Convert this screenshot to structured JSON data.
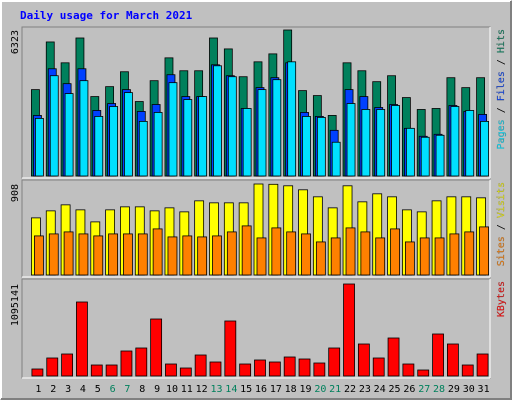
{
  "title": "Daily usage for March 2021",
  "chart_data": [
    {
      "type": "bar",
      "ylim": [
        0,
        6323
      ],
      "yticks": [
        6323
      ],
      "legend_separator": " / ",
      "series": [
        {
          "name": "Hits",
          "color": "#00805c",
          "values": [
            3741,
            5805,
            4902,
            5977,
            3440,
            3870,
            4515,
            3225,
            4128,
            5117,
            4558,
            4558,
            5977,
            5504,
            4300,
            4945,
            5289,
            6323,
            3698,
            3483,
            2623,
            4902,
            4558,
            4085,
            4343,
            3397,
            2881,
            2924,
            4257,
            3827,
            4257
          ]
        },
        {
          "name": "Files",
          "color": "#0040ff",
          "values": [
            2623,
            4644,
            3999,
            4644,
            2838,
            3139,
            3741,
            2795,
            3096,
            4386,
            3440,
            3440,
            4816,
            4343,
            2924,
            3827,
            4257,
            4902,
            2752,
            2580,
            1978,
            3741,
            3440,
            2967,
            3096,
            2064,
            1720,
            1806,
            3053,
            2795,
            2666
          ]
        },
        {
          "name": "Pages",
          "color": "#00e0ff",
          "values": [
            2494,
            4343,
            3569,
            4128,
            2580,
            3010,
            3612,
            2365,
            2752,
            4042,
            3311,
            3440,
            4773,
            4300,
            2924,
            3741,
            4171,
            4945,
            2580,
            2537,
            1462,
            3139,
            2881,
            2881,
            3053,
            2064,
            1677,
            1763,
            3010,
            2838,
            2365
          ]
        }
      ]
    },
    {
      "type": "bar",
      "ylim": [
        0,
        908
      ],
      "yticks": [
        908
      ],
      "legend_separator": " / ",
      "series": [
        {
          "name": "Visits",
          "color": "#ffff00",
          "values": [
            570,
            640,
            700,
            650,
            530,
            650,
            680,
            680,
            640,
            670,
            630,
            740,
            720,
            720,
            720,
            908,
            905,
            890,
            850,
            780,
            670,
            890,
            730,
            810,
            780,
            650,
            630,
            740,
            780,
            780,
            770
          ]
        },
        {
          "name": "Sites",
          "color": "#ff8000",
          "values": [
            390,
            410,
            430,
            410,
            390,
            410,
            410,
            410,
            460,
            380,
            390,
            380,
            390,
            430,
            490,
            370,
            470,
            430,
            410,
            330,
            370,
            470,
            430,
            370,
            460,
            330,
            370,
            370,
            410,
            430,
            480
          ]
        }
      ]
    },
    {
      "type": "bar",
      "ylim": [
        0,
        1095141
      ],
      "yticks": [
        1095141
      ],
      "categories": [
        "1",
        "2",
        "3",
        "4",
        "5",
        "6",
        "7",
        "8",
        "9",
        "10",
        "11",
        "12",
        "13",
        "14",
        "15",
        "16",
        "17",
        "18",
        "19",
        "20",
        "21",
        "22",
        "23",
        "24",
        "25",
        "26",
        "27",
        "28",
        "29",
        "30",
        "31"
      ],
      "category_colors": [
        "#000000",
        "#000000",
        "#000000",
        "#000000",
        "#000000",
        "#00805c",
        "#00805c",
        "#000000",
        "#000000",
        "#000000",
        "#000000",
        "#000000",
        "#00805c",
        "#00805c",
        "#000000",
        "#000000",
        "#000000",
        "#000000",
        "#000000",
        "#00805c",
        "#00805c",
        "#000000",
        "#000000",
        "#000000",
        "#000000",
        "#000000",
        "#00805c",
        "#00805c",
        "#000000",
        "#000000",
        "#000000"
      ],
      "series": [
        {
          "name": "KBytes",
          "color": "#ff0000",
          "values": [
            83328,
            214272,
            261888,
            880896,
            130944,
            130944,
            297600,
            333312,
            678528,
            142848,
            95232,
            249984,
            166656,
            654720,
            142848,
            190464,
            166656,
            226176,
            202368,
            154752,
            333312,
            1095141,
            380928,
            214272,
            452352,
            142848,
            71424,
            499968,
            380928,
            130944,
            261888
          ]
        }
      ]
    }
  ]
}
